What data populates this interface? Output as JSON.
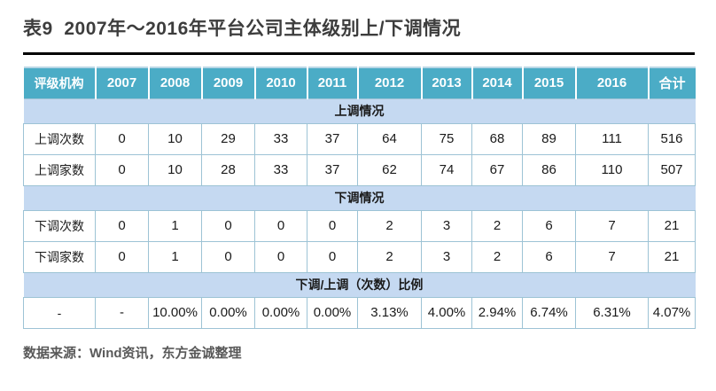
{
  "title": "表9  2007年～2016年平台公司主体级别上/下调情况",
  "source_note": "数据来源：Wind资讯，东方金诚整理",
  "colors": {
    "header_bg": "#4bacc6",
    "section_bg": "#c5d9f1",
    "cell_border": "#9dc3d5",
    "title_color": "#3d3d3d",
    "note_color": "#595959"
  },
  "table": {
    "header": [
      "评级机构",
      "2007",
      "2008",
      "2009",
      "2010",
      "2011",
      "2012",
      "2013",
      "2014",
      "2015",
      "2016",
      "合计"
    ],
    "rows": [
      {
        "type": "section",
        "label": "上调情况"
      },
      {
        "type": "data",
        "cells": [
          "上调次数",
          "0",
          "10",
          "29",
          "33",
          "37",
          "64",
          "75",
          "68",
          "89",
          "111",
          "516"
        ]
      },
      {
        "type": "data",
        "cells": [
          "上调家数",
          "0",
          "10",
          "28",
          "33",
          "37",
          "62",
          "74",
          "67",
          "86",
          "110",
          "507"
        ]
      },
      {
        "type": "section",
        "label": "下调情况"
      },
      {
        "type": "data",
        "cells": [
          "下调次数",
          "0",
          "1",
          "0",
          "0",
          "0",
          "2",
          "3",
          "2",
          "6",
          "7",
          "21"
        ]
      },
      {
        "type": "data",
        "cells": [
          "下调家数",
          "0",
          "1",
          "0",
          "0",
          "0",
          "2",
          "3",
          "2",
          "6",
          "7",
          "21"
        ]
      },
      {
        "type": "section",
        "label": "下调/上调（次数）比例"
      },
      {
        "type": "data",
        "cells": [
          "-",
          "-",
          "10.00%",
          "0.00%",
          "0.00%",
          "0.00%",
          "3.13%",
          "4.00%",
          "2.94%",
          "6.74%",
          "6.31%",
          "4.07%"
        ]
      }
    ]
  }
}
